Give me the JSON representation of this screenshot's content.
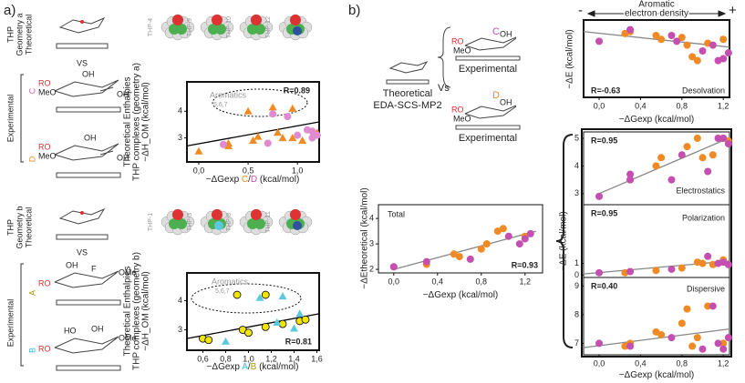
{
  "labels": {
    "panel_a": "a)",
    "panel_b": "b)",
    "thp_a": [
      "THP",
      "Geometry a",
      "Theoretical"
    ],
    "thp_b": [
      "THP",
      "Geometry b",
      "Theoretical"
    ],
    "vs_a": "VS",
    "vs_b": "VS",
    "exp_a": "Experimental",
    "exp_b": "Experimental",
    "C": "C",
    "D": "D",
    "A": "A",
    "B": "B",
    "thp_top": [
      "THP-4",
      "THP-9",
      "THP-10",
      "THP-12"
    ],
    "thp_bottom": [
      "THP-1",
      "THP-3",
      "THP-8",
      "THP-11"
    ],
    "sugar_C": [
      "RO",
      "MeO",
      "OH",
      "OH"
    ],
    "sugar_D": [
      "RO",
      "MeO",
      "OH",
      "OH"
    ],
    "sugar_A": [
      "OH",
      "F",
      "RO",
      "OMe"
    ],
    "sugar_B": [
      "HO",
      "OH",
      "RO",
      "OMe"
    ],
    "b_theo": "Theoretical",
    "b_eda": "EDA-SCS-MP2",
    "b_vs": "Vs",
    "b_exp1": "Experimental",
    "b_exp2": "Experimental",
    "b_C": "C",
    "b_D": "D",
    "sugar_bC": [
      "RO",
      "MeO",
      "OH"
    ],
    "sugar_bD": [
      "RO",
      "MeO",
      "OH"
    ],
    "density": [
      "Aromatic",
      "electron density"
    ],
    "minus": "-",
    "plus": "+"
  },
  "chart_data": [
    {
      "type": "scatter",
      "ylabel": [
        "Theoretical Enthalpies",
        "THP complexes (geometry a)",
        "−ΔH_OM (kcal/mol)"
      ],
      "xlabel": [
        {
          "text": "−ΔGexp ",
          "color": "#222"
        },
        {
          "text": "C",
          "color": "#f08a24"
        },
        {
          "text": "/",
          "color": "#222"
        },
        {
          "text": "D",
          "color": "#c44fb0"
        },
        {
          "text": " (kcal/mol)",
          "color": "#222"
        }
      ],
      "r_label": "R=0.89",
      "aromatics_label": "Aromatics",
      "aromatics_ids": "5,6,7",
      "xlim": [
        -0.12,
        1.22
      ],
      "ylim": [
        2.1,
        5.1
      ],
      "xticks": [
        {
          "value": 0,
          "label": "0,0"
        },
        {
          "value": 0.5,
          "label": "0,5"
        },
        {
          "value": 1,
          "label": "1,0"
        }
      ],
      "yticks": [
        3,
        4
      ],
      "series": [
        {
          "color": "#f08a24",
          "marker": "triangle",
          "x": [
            0,
            0.3,
            0.3,
            0.55,
            0.6,
            0.8,
            0.85,
            0.95,
            1.2,
            1.05,
            0.5,
            0.75,
            0.95
          ],
          "values": [
            2.5,
            2.7,
            2.8,
            2.9,
            3.05,
            3.2,
            3.0,
            3.0,
            3.2,
            2.9,
            4.0,
            4.15,
            4.1
          ]
        },
        {
          "color": "#e08ad0",
          "marker": "circle",
          "x": [
            0.25,
            0.7,
            1.0,
            1.1,
            1.15,
            1.2,
            1.15,
            0.75,
            0.9
          ],
          "values": [
            2.75,
            2.8,
            3.1,
            3.3,
            3.0,
            3.1,
            3.25,
            3.9,
            3.8
          ]
        }
      ],
      "fit": {
        "x": [
          -0.12,
          1.22
        ],
        "y": [
          2.7,
          3.6
        ],
        "color": "#000"
      }
    },
    {
      "type": "scatter",
      "ylabel": [
        "Theoretical Enthalpies",
        "THP complexes (geometry b)",
        "−ΔH_OM (kcal/mol)"
      ],
      "xlabel": [
        {
          "text": "−ΔGexp ",
          "color": "#222"
        },
        {
          "text": "A",
          "color": "#3bb8d8"
        },
        {
          "text": "/",
          "color": "#222"
        },
        {
          "text": "B",
          "color": "#a89a00"
        },
        {
          "text": " (kcal/mol)",
          "color": "#222"
        }
      ],
      "r_label": "R=0.81",
      "aromatics_label": "Aromatics",
      "aromatics_ids": "5,6,7",
      "xlim": [
        0.46,
        1.62
      ],
      "ylim": [
        2.3,
        4.95
      ],
      "xticks": [
        {
          "value": 0.6,
          "label": "0,6"
        },
        {
          "value": 0.8,
          "label": "0,8"
        },
        {
          "value": 1,
          "label": "1,0"
        },
        {
          "value": 1.2,
          "label": "1,2"
        },
        {
          "value": 1.4,
          "label": "1,4"
        },
        {
          "value": 1.6,
          "label": "1,6"
        }
      ],
      "yticks": [
        3,
        4
      ],
      "series": [
        {
          "color": "#f2e600",
          "edgecolor": "#000",
          "marker": "circle",
          "x": [
            0.6,
            0.65,
            0.95,
            1.0,
            1.15,
            1.3,
            1.45,
            1.5,
            0.9,
            1.15
          ],
          "values": [
            2.7,
            2.65,
            3.0,
            2.9,
            3.1,
            3.2,
            3.3,
            3.35,
            4.2,
            4.2
          ]
        },
        {
          "color": "#5bc8e0",
          "marker": "triangle",
          "x": [
            0.8,
            1.25,
            1.4,
            1.45,
            1.1,
            1.3
          ],
          "values": [
            2.6,
            3.25,
            3.05,
            3.55,
            4.1,
            4.15
          ]
        }
      ],
      "fit": {
        "x": [
          0.46,
          1.62
        ],
        "y": [
          2.7,
          3.55
        ],
        "color": "#000"
      }
    },
    {
      "type": "scatter",
      "title": "Desolvation",
      "ylabel": [
        "−ΔE (kcal/mol)"
      ],
      "xlabel": [
        {
          "text": "−ΔGexp (kcal/mol)",
          "color": "#222"
        }
      ],
      "r_label": "R=-0.63",
      "xlim": [
        -0.15,
        1.26
      ],
      "ylim": [
        0,
        4
      ],
      "xticks": [
        {
          "value": 0,
          "label": "0,0"
        },
        {
          "value": 0.4,
          "label": "0,4"
        },
        {
          "value": 0.8,
          "label": "0,8"
        },
        {
          "value": 1.2,
          "label": "1,2"
        }
      ],
      "series": [
        {
          "color": "#f08a24",
          "marker": "circle",
          "x": [
            0.25,
            0.3,
            0.55,
            0.6,
            0.8,
            0.85,
            0.9,
            0.95,
            1.05,
            1.2
          ],
          "values": [
            3.3,
            3.4,
            3.2,
            3.0,
            3.1,
            2.7,
            2.1,
            1.9,
            2.8,
            3.0
          ]
        },
        {
          "color": "#c44fb0",
          "marker": "circle",
          "x": [
            0,
            0.3,
            0.7,
            0.75,
            1.0,
            1.1,
            1.15,
            1.2,
            1.25
          ],
          "values": [
            2.9,
            3.5,
            3.2,
            2.9,
            2.4,
            2.7,
            1.9,
            2.0,
            2.3
          ]
        }
      ],
      "fit": {
        "x": [
          -0.15,
          1.26
        ],
        "y": [
          3.4,
          2.6
        ],
        "color": "#888"
      }
    },
    {
      "type": "scatter",
      "title": "Total",
      "ylabel": [
        "−ΔEtheoretical (kcal/mol)"
      ],
      "xlabel": [
        {
          "text": "−ΔGexp (kcal/mol)",
          "color": "#222"
        }
      ],
      "r_label": "R=0.93",
      "xlim": [
        -0.14,
        1.36
      ],
      "ylim": [
        1.86,
        4.54
      ],
      "xticks": [
        {
          "value": 0,
          "label": "0,0"
        },
        {
          "value": 0.4,
          "label": "0,4"
        },
        {
          "value": 0.8,
          "label": "0,8"
        },
        {
          "value": 1.2,
          "label": "1,2"
        }
      ],
      "yticks": [
        2,
        3,
        4
      ],
      "series": [
        {
          "color": "#f08a24",
          "marker": "circle",
          "x": [
            0,
            0.3,
            0.55,
            0.6,
            0.8,
            0.85,
            0.95,
            1.0,
            1.2
          ],
          "values": [
            2.1,
            2.2,
            2.6,
            2.5,
            2.8,
            3.0,
            3.5,
            3.6,
            3.3
          ]
        },
        {
          "color": "#c44fb0",
          "marker": "circle",
          "x": [
            0.3,
            0.7,
            1.05,
            1.15,
            1.2,
            1.25,
            0
          ],
          "values": [
            2.3,
            2.4,
            3.3,
            3.0,
            3.2,
            3.4,
            2.1
          ]
        }
      ],
      "fit": {
        "x": [
          0,
          1.3
        ],
        "y": [
          2.0,
          3.5
        ],
        "color": "#888"
      }
    },
    {
      "type": "scatter",
      "title": "Electrostatics",
      "r_label": "R=0.95",
      "xlim": [
        -0.15,
        1.26
      ],
      "ylim": [
        2.6,
        5.23
      ],
      "yticks": [
        3,
        4,
        5
      ],
      "series": [
        {
          "color": "#f08a24",
          "marker": "circle",
          "x": [
            0.3,
            0.55,
            0.6,
            0.85,
            0.95,
            1.0,
            1.1,
            1.2,
            1.25
          ],
          "values": [
            3.5,
            4.0,
            4.3,
            4.7,
            5.0,
            4.3,
            4.4,
            5.0,
            4.9
          ]
        },
        {
          "color": "#c44fb0",
          "marker": "circle",
          "x": [
            0,
            0.3,
            0.3,
            0.7,
            0.8,
            1.05,
            1.15,
            1.2,
            1.25
          ],
          "values": [
            2.9,
            3.7,
            3.5,
            3.5,
            4.4,
            3.8,
            5.0,
            5.0,
            4.8
          ]
        }
      ],
      "fit": {
        "x": [
          0,
          1.25
        ],
        "y": [
          3.0,
          5.0
        ],
        "color": "#888"
      }
    },
    {
      "type": "scatter",
      "title": "Polarization",
      "ylabel": [
        "−ΔE (kcal/mol)"
      ],
      "r_label": "R=0.95",
      "xlim": [
        -0.15,
        1.26
      ],
      "ylim": [
        -0.2,
        6
      ],
      "yticks": [
        0,
        1
      ],
      "series": [
        {
          "color": "#f08a24",
          "marker": "circle",
          "x": [
            0.25,
            0.55,
            0.8,
            0.95,
            1.0,
            1.1,
            1.2
          ],
          "values": [
            0.2,
            0.4,
            0.6,
            1.1,
            1.0,
            0.9,
            1.3
          ]
        },
        {
          "color": "#c44fb0",
          "marker": "circle",
          "x": [
            0,
            0.3,
            0.7,
            1.05,
            1.15,
            1.2,
            1.25
          ],
          "values": [
            0.2,
            0.3,
            0.5,
            1.6,
            1.0,
            1.1,
            0.9
          ]
        }
      ],
      "fit": {
        "x": [
          -0.15,
          1.26
        ],
        "y": [
          0.1,
          1.2
        ],
        "color": "#888"
      }
    },
    {
      "type": "scatter",
      "title": "Dispersive",
      "xlabel": [
        {
          "text": "−ΔGexp (kcal/mol)",
          "color": "#222"
        }
      ],
      "r_label": "R=0.40",
      "xlim": [
        -0.15,
        1.26
      ],
      "ylim": [
        6.6,
        9.3
      ],
      "xticks": [
        {
          "value": 0,
          "label": "0,0"
        },
        {
          "value": 0.4,
          "label": "0,4"
        },
        {
          "value": 0.8,
          "label": "0,8"
        },
        {
          "value": 1.2,
          "label": "1,2"
        }
      ],
      "yticks": [
        7,
        8,
        9
      ],
      "series": [
        {
          "color": "#f08a24",
          "marker": "circle",
          "x": [
            0.25,
            0.3,
            0.55,
            0.6,
            0.8,
            0.85,
            0.9,
            0.95,
            1.2,
            1.05
          ],
          "values": [
            6.9,
            7.0,
            7.4,
            7.3,
            7.7,
            8.2,
            6.9,
            7.2,
            7.0,
            8.3
          ]
        },
        {
          "color": "#c44fb0",
          "marker": "circle",
          "x": [
            0,
            0.3,
            0.7,
            1.0,
            1.1,
            1.15,
            1.2,
            1.25
          ],
          "values": [
            7.0,
            6.9,
            7.2,
            6.8,
            8.3,
            7.0,
            6.8,
            7.2
          ]
        }
      ],
      "fit": {
        "x": [
          -0.15,
          1.26
        ],
        "y": [
          6.85,
          7.5
        ],
        "color": "#888"
      }
    }
  ]
}
